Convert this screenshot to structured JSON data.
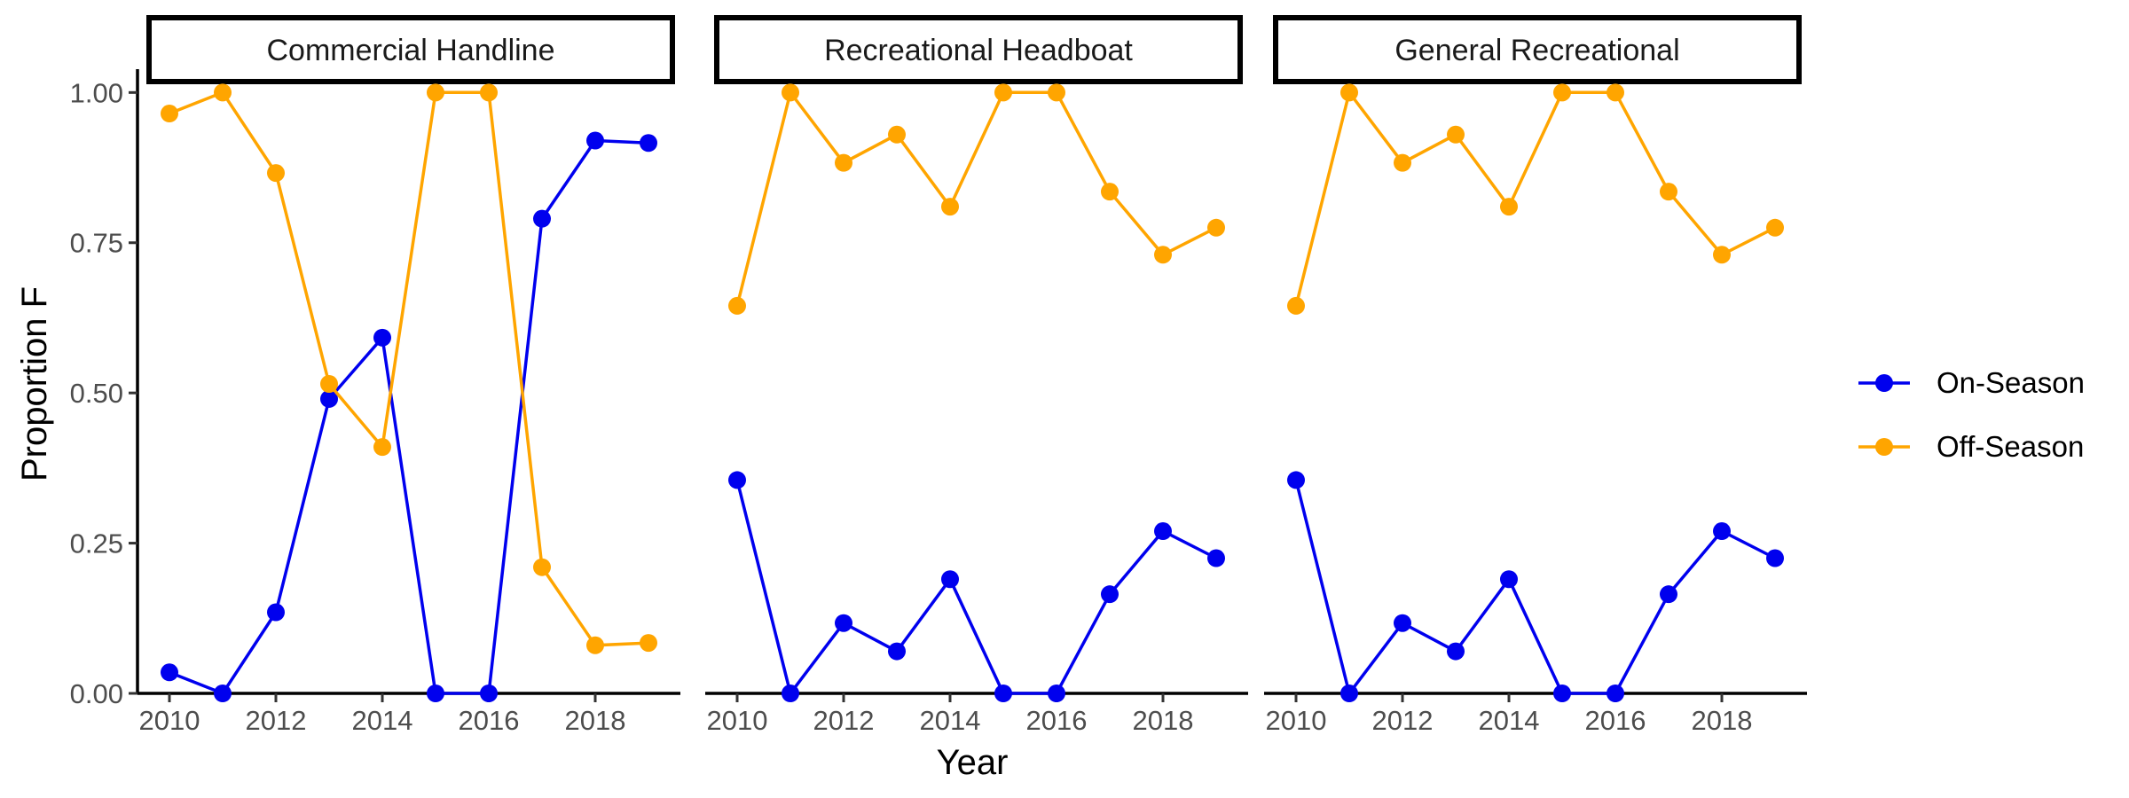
{
  "chart_data": {
    "type": "line",
    "xlabel": "Year",
    "ylabel": "Proportion F",
    "xlim": [
      2009.4,
      2019.6
    ],
    "ylim": [
      0,
      1.03
    ],
    "x_ticks": [
      2010,
      2012,
      2014,
      2016,
      2018
    ],
    "x_tick_labels": [
      "2010",
      "2012",
      "2014",
      "2016",
      "2018"
    ],
    "y_ticks": [
      0,
      0.25,
      0.5,
      0.75,
      1
    ],
    "y_tick_labels": [
      "0.00",
      "0.25",
      "0.50",
      "0.75",
      "1.00"
    ],
    "grid": false,
    "legend_position": "right",
    "x": [
      2010,
      2011,
      2012,
      2013,
      2014,
      2015,
      2016,
      2017,
      2018,
      2019
    ],
    "legend": [
      {
        "name": "On-Season",
        "color": "#0000ee"
      },
      {
        "name": "Off-Season",
        "color": "#ffa500"
      }
    ],
    "panels": [
      {
        "title": "Commercial Handline",
        "series": [
          {
            "name": "On-Season",
            "color": "#0000ee",
            "values": [
              0.035,
              0.0,
              0.135,
              0.49,
              0.592,
              0.0,
              0.0,
              0.79,
              0.92,
              0.916
            ]
          },
          {
            "name": "Off-Season",
            "color": "#ffa500",
            "values": [
              0.965,
              1.0,
              0.866,
              0.515,
              0.41,
              1.0,
              1.0,
              0.21,
              0.08,
              0.084
            ]
          }
        ]
      },
      {
        "title": "Recreational Headboat",
        "series": [
          {
            "name": "On-Season",
            "color": "#0000ee",
            "values": [
              0.355,
              0.0,
              0.117,
              0.07,
              0.19,
              0.0,
              0.0,
              0.165,
              0.27,
              0.225
            ]
          },
          {
            "name": "Off-Season",
            "color": "#ffa500",
            "values": [
              0.645,
              1.0,
              0.883,
              0.93,
              0.81,
              1.0,
              1.0,
              0.835,
              0.73,
              0.775
            ]
          }
        ]
      },
      {
        "title": "General Recreational",
        "series": [
          {
            "name": "On-Season",
            "color": "#0000ee",
            "values": [
              0.355,
              0.0,
              0.117,
              0.07,
              0.19,
              0.0,
              0.0,
              0.165,
              0.27,
              0.225
            ]
          },
          {
            "name": "Off-Season",
            "color": "#ffa500",
            "values": [
              0.645,
              1.0,
              0.883,
              0.93,
              0.81,
              1.0,
              1.0,
              0.835,
              0.73,
              0.775
            ]
          }
        ]
      }
    ]
  }
}
